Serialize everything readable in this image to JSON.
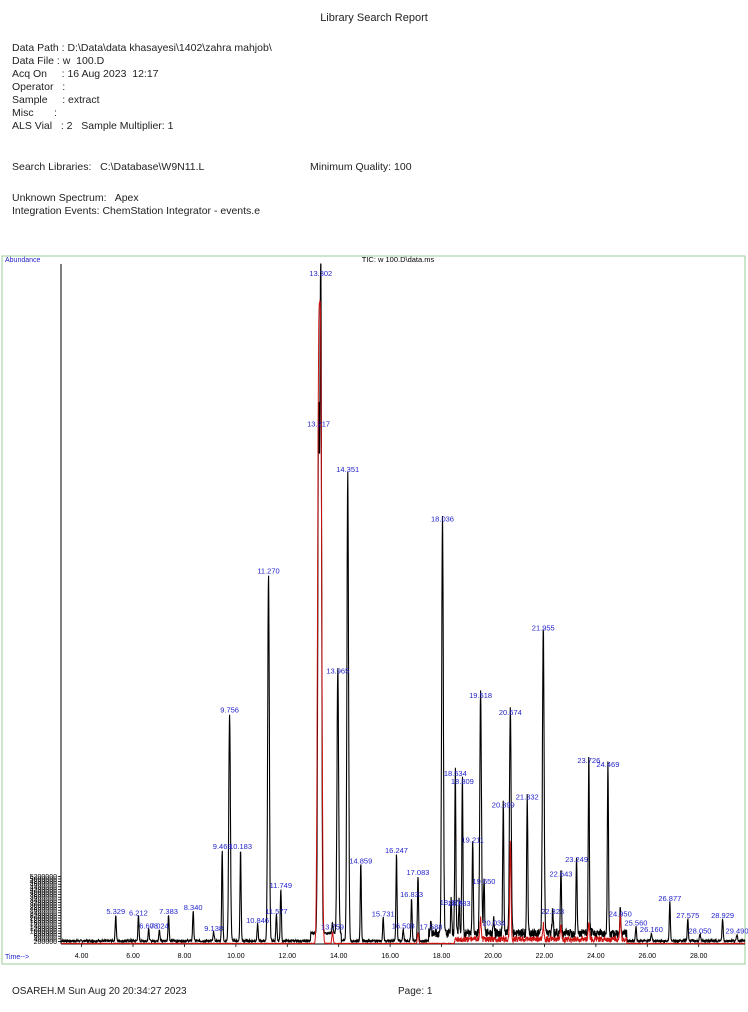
{
  "report": {
    "title": "Library Search Report",
    "data_path": "Data Path : D:\\Data\\data khasayesi\\1402\\zahra mahjob\\",
    "data_file": "Data File : w  100.D",
    "acq_on": "Acq On     : 16 Aug 2023  12:17",
    "operator": "Operator   :",
    "sample": "Sample     : extract",
    "misc": "Misc       :",
    "als_vial": "ALS Vial   : 2   Sample Multiplier: 1",
    "search_libraries": "Search Libraries:   C:\\Database\\W9N11.L",
    "minimum_quality": "Minimum Quality: 100",
    "unknown_spectrum": "Unknown Spectrum:   Apex",
    "integration_events": "Integration Events: ChemStation Integrator - events.e"
  },
  "footer": {
    "left": "OSAREH.M Sun Aug 20 20:34:27 2023",
    "right": "Page: 1"
  },
  "colors": {
    "tic": "#000000",
    "overlay": "#cc1111",
    "label": "#2222cc",
    "frame": "#99cc99"
  },
  "chart_data": {
    "type": "line",
    "title": "TIC: w  100.D\\data.ms",
    "ylabel": "Abundance",
    "xlabel": "Time-->",
    "xlim": [
      3.2,
      29.8
    ],
    "ylim": [
      0,
      52300000
    ],
    "x_ticks": [
      "4.00",
      "6.00",
      "8.00",
      "10.00",
      "12.00",
      "14.00",
      "16.00",
      "18.00",
      "20.00",
      "22.00",
      "24.00",
      "26.00",
      "28.00"
    ],
    "y_ticks": [
      "200000",
      "400000",
      "600000",
      "800000",
      "1000000",
      "1200000",
      "1400000",
      "1600000",
      "1800000",
      "2000000",
      "2200000",
      "2400000",
      "2600000",
      "2800000",
      "3000000",
      "3200000",
      "3400000",
      "3600000",
      "3800000",
      "4000000",
      "4200000",
      "4400000",
      "4600000",
      "4800000",
      "5000000",
      "5200000"
    ],
    "peaks": [
      {
        "label": "5.329",
        "x": 5.329,
        "y": 2000000
      },
      {
        "label": "6.212",
        "x": 6.212,
        "y": 1900000
      },
      {
        "label": "6.608",
        "x": 6.608,
        "y": 900000
      },
      {
        "label": "7.024",
        "x": 7.024,
        "y": 900000
      },
      {
        "label": "7.383",
        "x": 7.383,
        "y": 2000000
      },
      {
        "label": "8.340",
        "x": 8.34,
        "y": 2300000
      },
      {
        "label": "9.138",
        "x": 9.138,
        "y": 700000
      },
      {
        "label": "9.469",
        "x": 9.469,
        "y": 7000000
      },
      {
        "label": "9.756",
        "x": 9.756,
        "y": 17500000
      },
      {
        "label": "10.183",
        "x": 10.183,
        "y": 7000000
      },
      {
        "label": "10.846",
        "x": 10.846,
        "y": 1300000
      },
      {
        "label": "11.270",
        "x": 11.27,
        "y": 28200000
      },
      {
        "label": "11.749",
        "x": 11.749,
        "y": 4000000
      },
      {
        "label": "11.577",
        "x": 11.577,
        "y": 2000000
      },
      {
        "label": "13.217",
        "x": 13.217,
        "y": 39500000
      },
      {
        "label": "13.302",
        "x": 13.302,
        "y": 51800000
      },
      {
        "label": "13.759",
        "x": 13.759,
        "y": 800000
      },
      {
        "label": "13.965",
        "x": 13.965,
        "y": 20500000
      },
      {
        "label": "14.351",
        "x": 14.351,
        "y": 36000000
      },
      {
        "label": "14.859",
        "x": 14.859,
        "y": 5900000
      },
      {
        "label": "15.731",
        "x": 15.731,
        "y": 1800000
      },
      {
        "label": "16.247",
        "x": 16.247,
        "y": 6700000
      },
      {
        "label": "16.508",
        "x": 16.508,
        "y": 900000
      },
      {
        "label": "16.833",
        "x": 16.833,
        "y": 3300000
      },
      {
        "label": "17.083",
        "x": 17.083,
        "y": 5000000
      },
      {
        "label": "17.588",
        "x": 17.588,
        "y": 800000
      },
      {
        "label": "18.036",
        "x": 18.036,
        "y": 32200000
      },
      {
        "label": "18.374",
        "x": 18.374,
        "y": 2700000
      },
      {
        "label": "18.534",
        "x": 18.534,
        "y": 12600000
      },
      {
        "label": "18.809",
        "x": 18.809,
        "y": 12000000
      },
      {
        "label": "18.683",
        "x": 18.683,
        "y": 2600000
      },
      {
        "label": "19.211",
        "x": 19.211,
        "y": 7500000
      },
      {
        "label": "19.518",
        "x": 19.518,
        "y": 18600000
      },
      {
        "label": "19.650",
        "x": 19.65,
        "y": 4300000
      },
      {
        "label": "20.034",
        "x": 20.034,
        "y": 1100000
      },
      {
        "label": "20.399",
        "x": 20.399,
        "y": 10200000
      },
      {
        "label": "20.674",
        "x": 20.674,
        "y": 17300000
      },
      {
        "label": "21.332",
        "x": 21.332,
        "y": 10800000
      },
      {
        "label": "21.955",
        "x": 21.955,
        "y": 23800000
      },
      {
        "label": "22.323",
        "x": 22.323,
        "y": 2000000
      },
      {
        "label": "22.643",
        "x": 22.643,
        "y": 4900000
      },
      {
        "label": "23.249",
        "x": 23.249,
        "y": 6000000
      },
      {
        "label": "23.726",
        "x": 23.726,
        "y": 13600000
      },
      {
        "label": "24.469",
        "x": 24.469,
        "y": 13300000
      },
      {
        "label": "24.950",
        "x": 24.95,
        "y": 1800000
      },
      {
        "label": "25.560",
        "x": 25.56,
        "y": 1100000
      },
      {
        "label": "26.160",
        "x": 26.16,
        "y": 600000
      },
      {
        "label": "26.877",
        "x": 26.877,
        "y": 3000000
      },
      {
        "label": "27.575",
        "x": 27.575,
        "y": 1700000
      },
      {
        "label": "28.050",
        "x": 28.05,
        "y": 500000
      },
      {
        "label": "28.929",
        "x": 28.929,
        "y": 1700000
      },
      {
        "label": "29.490",
        "x": 29.49,
        "y": 500000
      }
    ],
    "overlay_peaks": [
      {
        "x": 13.217,
        "y": 40500000
      },
      {
        "x": 13.302,
        "y": 41000000
      },
      {
        "x": 13.759,
        "y": 900000
      },
      {
        "x": 17.083,
        "y": 800000
      },
      {
        "x": 19.518,
        "y": 1600000
      },
      {
        "x": 20.674,
        "y": 7400000
      },
      {
        "x": 21.955,
        "y": 1200000
      },
      {
        "x": 22.643,
        "y": 1000000
      },
      {
        "x": 23.726,
        "y": 1300000
      },
      {
        "x": 24.95,
        "y": 1800000
      }
    ],
    "grid": false
  }
}
